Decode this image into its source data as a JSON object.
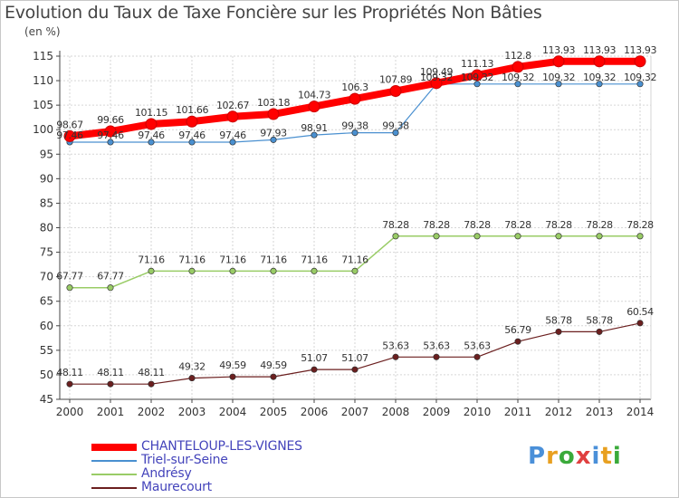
{
  "title": "Evolution du Taux de Taxe Foncière sur les Propriétés Non Bâties",
  "unit_label": "(en %)",
  "logo": {
    "text": "Proxiti",
    "colors": [
      "#4a90d9",
      "#e8a020",
      "#3aaa3a",
      "#e04040",
      "#4a90d9",
      "#e8a020",
      "#3aaa3a"
    ]
  },
  "chart_data": {
    "type": "line",
    "title": "Evolution du Taux de Taxe Foncière sur les Propriétés Non Bâties",
    "ylabel": "(en %)",
    "xlabel": "",
    "x": [
      "2000",
      "2001",
      "2002",
      "2003",
      "2004",
      "2005",
      "2006",
      "2007",
      "2008",
      "2009",
      "2010",
      "2011",
      "2012",
      "2013",
      "2014"
    ],
    "ylim": [
      45,
      115
    ],
    "yticks": [
      "45",
      "50",
      "55",
      "60",
      "65",
      "70",
      "75",
      "80",
      "85",
      "90",
      "95",
      "100",
      "105",
      "110",
      "115"
    ],
    "grid": true,
    "legend": "bottom-left",
    "series": [
      {
        "name": "CHANTELOUP-LES-VIGNES",
        "color": "#ff0000",
        "width": 8,
        "values": [
          98.67,
          99.66,
          101.15,
          101.66,
          102.67,
          103.18,
          104.73,
          106.3,
          107.89,
          109.49,
          111.13,
          112.8,
          113.93,
          113.93,
          113.93
        ],
        "labels": [
          "98.67",
          "99.66",
          "101.15",
          "101.66",
          "102.67",
          "103.18",
          "104.73",
          "106.3",
          "107.89",
          "109.49",
          "111.13",
          "112.8",
          "113.93",
          "113.93",
          "113.93"
        ]
      },
      {
        "name": "Triel-sur-Seine",
        "color": "#4a90d0",
        "width": 1.2,
        "values": [
          97.46,
          97.46,
          97.46,
          97.46,
          97.46,
          97.93,
          98.91,
          99.38,
          99.38,
          109.32,
          109.32,
          109.32,
          109.32,
          109.32,
          109.32
        ],
        "labels": [
          "97.46",
          "97.46",
          "97.46",
          "97.46",
          "97.46",
          "97.93",
          "98.91",
          "99.38",
          "99.38",
          "109.32",
          "109.32",
          "109.32",
          "109.32",
          "109.32",
          "109.32"
        ]
      },
      {
        "name": "Andrésy",
        "color": "#99cc66",
        "width": 1.5,
        "values": [
          67.77,
          67.77,
          71.16,
          71.16,
          71.16,
          71.16,
          71.16,
          71.16,
          78.28,
          78.28,
          78.28,
          78.28,
          78.28,
          78.28,
          78.28
        ],
        "labels": [
          "67.77",
          "67.77",
          "71.16",
          "71.16",
          "71.16",
          "71.16",
          "71.16",
          "71.16",
          "78.28",
          "78.28",
          "78.28",
          "78.28",
          "78.28",
          "78.28",
          "78.28"
        ]
      },
      {
        "name": "Maurecourt",
        "color": "#6b1f1f",
        "width": 1.2,
        "values": [
          48.11,
          48.11,
          48.11,
          49.32,
          49.59,
          49.59,
          51.07,
          51.07,
          53.63,
          53.63,
          53.63,
          56.79,
          58.78,
          58.78,
          60.54
        ],
        "labels": [
          "48.11",
          "48.11",
          "48.11",
          "49.32",
          "49.59",
          "49.59",
          "51.07",
          "51.07",
          "53.63",
          "53.63",
          "53.63",
          "56.79",
          "58.78",
          "58.78",
          "60.54"
        ]
      }
    ]
  }
}
